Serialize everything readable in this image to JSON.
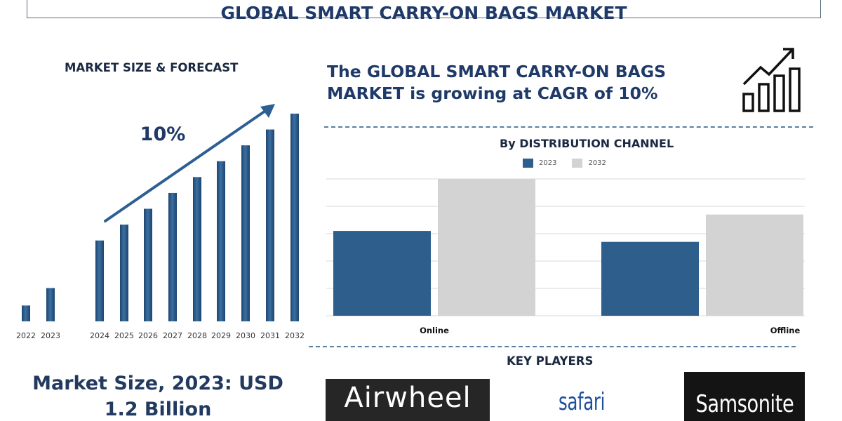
{
  "header": {
    "title": "GLOBAL SMART CARRY-ON BAGS MARKET"
  },
  "forecast_panel": {
    "title": "MARKET SIZE & FORECAST",
    "cagr_label": "10%",
    "market_size_text": "Market Size, 2023: USD 1.2 Billion"
  },
  "headline": {
    "text": "The GLOBAL SMART CARRY-ON BAGS MARKET is growing at CAGR of 10%"
  },
  "icons": {
    "growth": "bar-chart-growth-icon"
  },
  "key_players": {
    "title": "KEY PLAYERS",
    "logos": [
      "Airwheel",
      "safari",
      "Samsonite"
    ]
  },
  "colors": {
    "bar_2023": "#2e5e8c",
    "bar_2032": "#d3d3d3",
    "forecast_bar": "#2c5c8e",
    "title_navy": "#1f3a68"
  },
  "chart_data": [
    {
      "type": "bar",
      "title": "MARKET SIZE & FORECAST",
      "categories": [
        "2022",
        "2023",
        "2024",
        "2025",
        "2026",
        "2027",
        "2028",
        "2029",
        "2030",
        "2031",
        "2032"
      ],
      "values": [
        1.0,
        2.1,
        5.1,
        6.1,
        7.1,
        8.1,
        9.1,
        10.1,
        11.1,
        12.1,
        13.1
      ],
      "annotation": "10%",
      "ylim": [
        0,
        13.5
      ]
    },
    {
      "type": "bar",
      "title": "By DISTRIBUTION CHANNEL",
      "categories": [
        "Online",
        "Offline"
      ],
      "series": [
        {
          "name": "2023",
          "values": [
            3.1,
            2.7
          ]
        },
        {
          "name": "2032",
          "values": [
            5.0,
            3.7
          ]
        }
      ],
      "ylim": [
        0,
        5.2
      ],
      "grid": true
    }
  ]
}
